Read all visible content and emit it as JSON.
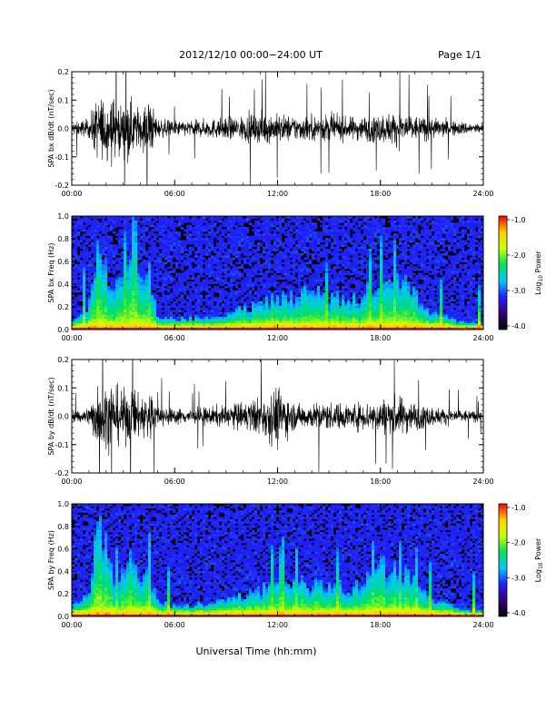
{
  "header": {
    "date_range": "2012/12/10   00:00−24:00 UT",
    "page": "Page 1/1"
  },
  "x_axis": {
    "label": "Universal Time (hh:mm)",
    "ticks": [
      "00:00",
      "06:00",
      "12:00",
      "18:00",
      "24:00"
    ],
    "range_hours": [
      0,
      24
    ]
  },
  "colorbar": {
    "label_main": "Log",
    "label_sub": "10",
    "label_end": " Power",
    "ticks": [
      "-1.0",
      "-2.0",
      "-3.0",
      "-4.0"
    ],
    "range": [
      -4,
      -1
    ],
    "colors": [
      "#000000",
      "#3a007a",
      "#1f1fff",
      "#00c8ff",
      "#00e060",
      "#c8ff00",
      "#ffd000",
      "#ff0000"
    ]
  },
  "chart_data": [
    {
      "type": "line",
      "name": "panel-bx-dbdt",
      "ylabel": "SPA bx dB/dt (nT/sec)",
      "ylim": [
        -0.2,
        0.2
      ],
      "yticks": [
        "0.2",
        "0.1",
        "0.0",
        "-0.1",
        "-0.2"
      ],
      "xlim": [
        0,
        24
      ],
      "envelope": {
        "x_hours": [
          0,
          1,
          1.5,
          2,
          2.5,
          3,
          3.5,
          4,
          4.5,
          5,
          6,
          7,
          8,
          9,
          10,
          11,
          12,
          13,
          14,
          15,
          16,
          17,
          18,
          19,
          20,
          21,
          22,
          23,
          24
        ],
        "amplitude": [
          0.04,
          0.06,
          0.2,
          0.2,
          0.2,
          0.14,
          0.18,
          0.12,
          0.2,
          0.06,
          0.05,
          0.05,
          0.06,
          0.07,
          0.08,
          0.1,
          0.09,
          0.08,
          0.08,
          0.09,
          0.07,
          0.08,
          0.09,
          0.11,
          0.08,
          0.07,
          0.05,
          0.04,
          0.03
        ]
      }
    },
    {
      "type": "heatmap",
      "name": "panel-bx-spectrogram",
      "ylabel": "SPA bx Freq (Hz)",
      "ylim": [
        0,
        1.0
      ],
      "yticks": [
        "1.0",
        "0.8",
        "0.6",
        "0.4",
        "0.2",
        "0.0"
      ],
      "xlim": [
        0,
        24
      ],
      "zlim": [
        -4,
        -1
      ],
      "activity": {
        "x_hours": [
          0,
          1,
          1.5,
          2,
          2.5,
          3,
          3.5,
          4,
          4.5,
          5,
          6,
          7,
          8,
          9,
          10,
          11,
          12,
          13,
          14,
          15,
          16,
          17,
          18,
          19,
          20,
          21,
          22,
          23,
          24
        ],
        "max_freq_hz": [
          0.08,
          0.2,
          0.8,
          0.55,
          0.3,
          0.55,
          0.6,
          0.4,
          0.5,
          0.12,
          0.1,
          0.1,
          0.12,
          0.14,
          0.18,
          0.22,
          0.28,
          0.3,
          0.34,
          0.3,
          0.26,
          0.3,
          0.45,
          0.45,
          0.3,
          0.15,
          0.1,
          0.06,
          0.05
        ]
      }
    },
    {
      "type": "line",
      "name": "panel-by-dbdt",
      "ylabel": "SPA by dB/dt (nT/sec)",
      "ylim": [
        -0.2,
        0.2
      ],
      "yticks": [
        "0.2",
        "0.1",
        "0.0",
        "-0.1",
        "-0.2"
      ],
      "xlim": [
        0,
        24
      ],
      "envelope": {
        "x_hours": [
          0,
          1,
          1.5,
          2,
          2.5,
          3,
          3.5,
          4,
          4.5,
          5,
          6,
          7,
          8,
          9,
          10,
          11,
          12,
          13,
          14,
          15,
          16,
          17,
          18,
          19,
          20,
          21,
          22,
          23,
          24
        ],
        "amplitude": [
          0.03,
          0.06,
          0.2,
          0.2,
          0.2,
          0.16,
          0.2,
          0.12,
          0.2,
          0.06,
          0.05,
          0.05,
          0.06,
          0.07,
          0.09,
          0.12,
          0.2,
          0.08,
          0.08,
          0.09,
          0.08,
          0.09,
          0.11,
          0.13,
          0.09,
          0.06,
          0.05,
          0.04,
          0.03
        ]
      }
    },
    {
      "type": "heatmap",
      "name": "panel-by-spectrogram",
      "ylabel": "SPA by Freq (Hz)",
      "ylim": [
        0,
        1.0
      ],
      "yticks": [
        "1.0",
        "0.8",
        "0.6",
        "0.4",
        "0.2",
        "0.0"
      ],
      "xlim": [
        0,
        24
      ],
      "zlim": [
        -4,
        -1
      ],
      "activity": {
        "x_hours": [
          0,
          1,
          1.5,
          2,
          2.5,
          3,
          3.5,
          4,
          4.5,
          5,
          6,
          7,
          8,
          9,
          10,
          11,
          12,
          13,
          14,
          15,
          16,
          17,
          18,
          19,
          20,
          21,
          22,
          23,
          24
        ],
        "max_freq_hz": [
          0.08,
          0.2,
          0.8,
          0.6,
          0.3,
          0.5,
          0.55,
          0.35,
          0.45,
          0.12,
          0.1,
          0.1,
          0.12,
          0.14,
          0.2,
          0.24,
          0.3,
          0.3,
          0.3,
          0.28,
          0.25,
          0.3,
          0.45,
          0.45,
          0.3,
          0.15,
          0.1,
          0.06,
          0.05
        ]
      }
    }
  ]
}
